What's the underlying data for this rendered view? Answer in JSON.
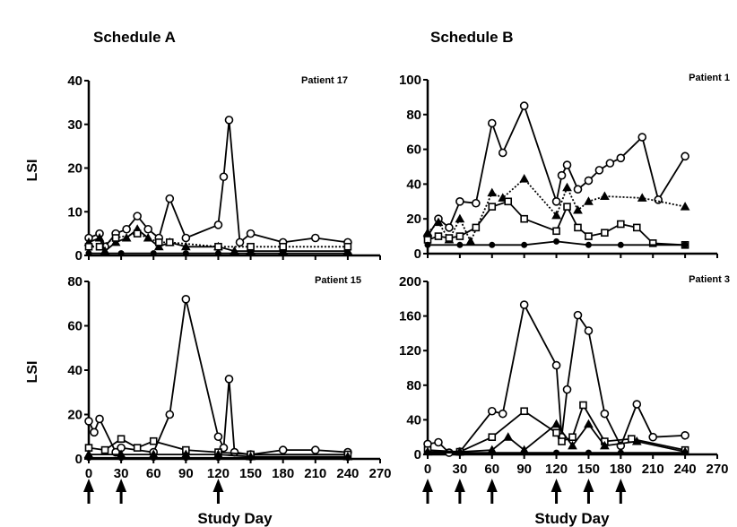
{
  "headers": {
    "schedule_a": "Schedule A",
    "schedule_b": "Schedule B"
  },
  "ylabel": "LSI",
  "xlabel": "Study Day",
  "colors": {
    "ink": "#000000",
    "background": "#ffffff"
  },
  "arrow_days": {
    "schedule_a": [
      0,
      30,
      120
    ],
    "schedule_b": [
      0,
      30,
      60,
      120,
      150,
      180
    ]
  },
  "chart_data": [
    {
      "type": "line",
      "title": "Patient 17",
      "ylim": [
        0,
        40
      ],
      "yticks": [
        0,
        10,
        20,
        30,
        40
      ],
      "xlim": [
        0,
        270
      ],
      "xticks": [
        0,
        30,
        60,
        90,
        120,
        150,
        180,
        210,
        240,
        270
      ],
      "show_xtick_labels": false,
      "series": [
        {
          "marker": "circle",
          "dashed": false,
          "points": [
            [
              0,
              4
            ],
            [
              10,
              5
            ],
            [
              15,
              2
            ],
            [
              25,
              5
            ],
            [
              35,
              6
            ],
            [
              45,
              9
            ],
            [
              55,
              6
            ],
            [
              65,
              4
            ],
            [
              75,
              13
            ],
            [
              90,
              4
            ],
            [
              120,
              7
            ],
            [
              125,
              18
            ],
            [
              130,
              31
            ],
            [
              140,
              3
            ],
            [
              150,
              5
            ],
            [
              180,
              3
            ],
            [
              210,
              4
            ],
            [
              240,
              3
            ]
          ]
        },
        {
          "marker": "triangle",
          "dashed": false,
          "points": [
            [
              0,
              3
            ],
            [
              10,
              4
            ],
            [
              15,
              1
            ],
            [
              25,
              3
            ],
            [
              35,
              4
            ],
            [
              45,
              6
            ],
            [
              55,
              4
            ],
            [
              65,
              2
            ],
            [
              75,
              3
            ],
            [
              90,
              2
            ],
            [
              120,
              2
            ],
            [
              135,
              1
            ],
            [
              150,
              1
            ],
            [
              180,
              1
            ],
            [
              240,
              1
            ]
          ]
        },
        {
          "marker": "square",
          "dashed": true,
          "points": [
            [
              0,
              2
            ],
            [
              10,
              2
            ],
            [
              25,
              4
            ],
            [
              45,
              5
            ],
            [
              65,
              3
            ],
            [
              75,
              3
            ],
            [
              120,
              2
            ],
            [
              150,
              2
            ],
            [
              180,
              2
            ],
            [
              240,
              2
            ]
          ]
        },
        {
          "marker": "filled-circle",
          "dashed": false,
          "points": [
            [
              0,
              0.5
            ],
            [
              30,
              0.5
            ],
            [
              60,
              0.5
            ],
            [
              90,
              0.5
            ],
            [
              120,
              0.5
            ],
            [
              150,
              0.5
            ],
            [
              180,
              0.5
            ],
            [
              240,
              0.5
            ]
          ]
        }
      ]
    },
    {
      "type": "line",
      "title": "Patient 15",
      "ylim": [
        0,
        80
      ],
      "yticks": [
        0,
        20,
        40,
        60,
        80
      ],
      "xlim": [
        0,
        270
      ],
      "xticks": [
        0,
        30,
        60,
        90,
        120,
        150,
        180,
        210,
        240,
        270
      ],
      "show_xtick_labels": true,
      "series": [
        {
          "marker": "circle",
          "dashed": false,
          "points": [
            [
              0,
              17
            ],
            [
              5,
              12
            ],
            [
              10,
              18
            ],
            [
              25,
              3
            ],
            [
              30,
              5
            ],
            [
              60,
              3
            ],
            [
              75,
              20
            ],
            [
              90,
              72
            ],
            [
              120,
              10
            ],
            [
              125,
              5
            ],
            [
              130,
              36
            ],
            [
              135,
              3
            ],
            [
              150,
              2
            ],
            [
              180,
              4
            ],
            [
              210,
              4
            ],
            [
              240,
              3
            ]
          ]
        },
        {
          "marker": "square",
          "dashed": false,
          "points": [
            [
              0,
              5
            ],
            [
              15,
              4
            ],
            [
              30,
              9
            ],
            [
              45,
              5
            ],
            [
              60,
              8
            ],
            [
              90,
              4
            ],
            [
              120,
              3
            ],
            [
              150,
              2
            ],
            [
              240,
              2
            ]
          ]
        },
        {
          "marker": "triangle",
          "dashed": false,
          "points": [
            [
              0,
              2
            ],
            [
              30,
              2
            ],
            [
              60,
              2
            ],
            [
              90,
              2
            ],
            [
              120,
              2
            ],
            [
              150,
              1
            ],
            [
              240,
              1
            ]
          ]
        },
        {
          "marker": "filled-circle",
          "dashed": false,
          "points": [
            [
              0,
              0.5
            ],
            [
              30,
              0.5
            ],
            [
              60,
              0.5
            ],
            [
              90,
              0.5
            ],
            [
              120,
              0.5
            ],
            [
              150,
              0.5
            ],
            [
              240,
              0.5
            ]
          ]
        }
      ]
    },
    {
      "type": "line",
      "title": "Patient 1",
      "ylim": [
        0,
        100
      ],
      "yticks": [
        0,
        20,
        40,
        60,
        80,
        100
      ],
      "xlim": [
        0,
        270
      ],
      "xticks": [
        0,
        30,
        60,
        90,
        120,
        150,
        180,
        210,
        240,
        270
      ],
      "show_xtick_labels": false,
      "series": [
        {
          "marker": "circle",
          "dashed": false,
          "points": [
            [
              0,
              10
            ],
            [
              10,
              20
            ],
            [
              20,
              15
            ],
            [
              30,
              30
            ],
            [
              45,
              29
            ],
            [
              60,
              75
            ],
            [
              70,
              58
            ],
            [
              90,
              85
            ],
            [
              120,
              30
            ],
            [
              125,
              45
            ],
            [
              130,
              51
            ],
            [
              140,
              37
            ],
            [
              150,
              42
            ],
            [
              160,
              48
            ],
            [
              170,
              52
            ],
            [
              180,
              55
            ],
            [
              200,
              67
            ],
            [
              215,
              31
            ],
            [
              240,
              56
            ]
          ]
        },
        {
          "marker": "triangle",
          "dashed": true,
          "points": [
            [
              0,
              12
            ],
            [
              10,
              18
            ],
            [
              20,
              8
            ],
            [
              30,
              20
            ],
            [
              40,
              7
            ],
            [
              60,
              35
            ],
            [
              70,
              32
            ],
            [
              90,
              43
            ],
            [
              120,
              22
            ],
            [
              130,
              38
            ],
            [
              140,
              25
            ],
            [
              150,
              30
            ],
            [
              165,
              33
            ],
            [
              200,
              32
            ],
            [
              240,
              27
            ]
          ]
        },
        {
          "marker": "square",
          "dashed": false,
          "points": [
            [
              0,
              8
            ],
            [
              10,
              10
            ],
            [
              20,
              9
            ],
            [
              30,
              10
            ],
            [
              45,
              15
            ],
            [
              60,
              27
            ],
            [
              75,
              30
            ],
            [
              90,
              20
            ],
            [
              120,
              13
            ],
            [
              130,
              27
            ],
            [
              140,
              15
            ],
            [
              150,
              10
            ],
            [
              165,
              12
            ],
            [
              180,
              17
            ],
            [
              195,
              15
            ],
            [
              210,
              6
            ],
            [
              240,
              5
            ]
          ]
        },
        {
          "marker": "filled-circle",
          "dashed": false,
          "points": [
            [
              0,
              5
            ],
            [
              30,
              5
            ],
            [
              60,
              5
            ],
            [
              90,
              5
            ],
            [
              120,
              7
            ],
            [
              150,
              5
            ],
            [
              180,
              5
            ],
            [
              240,
              5
            ]
          ]
        }
      ]
    },
    {
      "type": "line",
      "title": "Patient 3",
      "ylim": [
        0,
        200
      ],
      "yticks": [
        0,
        40,
        80,
        120,
        160,
        200
      ],
      "xlim": [
        0,
        270
      ],
      "xticks": [
        0,
        30,
        60,
        90,
        120,
        150,
        180,
        210,
        240,
        270
      ],
      "show_xtick_labels": true,
      "series": [
        {
          "marker": "circle",
          "dashed": false,
          "points": [
            [
              0,
              12
            ],
            [
              10,
              14
            ],
            [
              20,
              2
            ],
            [
              30,
              3
            ],
            [
              60,
              50
            ],
            [
              70,
              47
            ],
            [
              90,
              173
            ],
            [
              120,
              103
            ],
            [
              125,
              20
            ],
            [
              130,
              75
            ],
            [
              140,
              161
            ],
            [
              150,
              143
            ],
            [
              165,
              47
            ],
            [
              180,
              10
            ],
            [
              195,
              58
            ],
            [
              210,
              20
            ],
            [
              240,
              22
            ]
          ]
        },
        {
          "marker": "square",
          "dashed": false,
          "points": [
            [
              0,
              5
            ],
            [
              30,
              3
            ],
            [
              60,
              20
            ],
            [
              90,
              50
            ],
            [
              120,
              25
            ],
            [
              125,
              15
            ],
            [
              135,
              20
            ],
            [
              145,
              57
            ],
            [
              165,
              15
            ],
            [
              190,
              18
            ],
            [
              240,
              5
            ]
          ]
        },
        {
          "marker": "triangle",
          "dashed": false,
          "points": [
            [
              0,
              3
            ],
            [
              30,
              3
            ],
            [
              60,
              5
            ],
            [
              75,
              20
            ],
            [
              90,
              5
            ],
            [
              120,
              35
            ],
            [
              135,
              10
            ],
            [
              150,
              35
            ],
            [
              165,
              10
            ],
            [
              195,
              15
            ],
            [
              240,
              3
            ]
          ]
        },
        {
          "marker": "filled-circle",
          "dashed": false,
          "points": [
            [
              0,
              2
            ],
            [
              30,
              2
            ],
            [
              60,
              2
            ],
            [
              90,
              2
            ],
            [
              120,
              2
            ],
            [
              150,
              2
            ],
            [
              180,
              2
            ],
            [
              240,
              2
            ]
          ]
        }
      ]
    }
  ]
}
